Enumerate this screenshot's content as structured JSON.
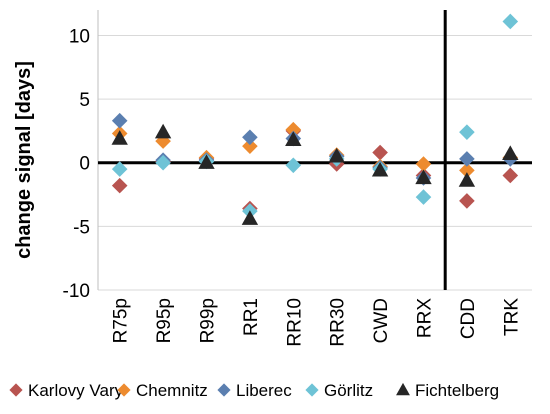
{
  "chart_data": {
    "type": "scatter",
    "categories": [
      "R75p",
      "R95p",
      "R99p",
      "RR1",
      "RR10",
      "RR30",
      "CWD",
      "RRX",
      "CDD",
      "TRK"
    ],
    "ylabel": "change signal [days]",
    "ylim": [
      -10,
      12
    ],
    "yticks": [
      -10,
      -5,
      0,
      5,
      10
    ],
    "grid": true,
    "legend_placement": "bottom",
    "series": [
      {
        "name": "Karlovy Vary",
        "marker": "diamond",
        "color": "#b85450",
        "values": [
          -1.8,
          0.1,
          0.3,
          -3.6,
          2.5,
          -0.1,
          0.8,
          -1.0,
          -3.0,
          -1.0
        ]
      },
      {
        "name": "Chemnitz",
        "marker": "diamond",
        "color": "#ed8b2f",
        "values": [
          2.3,
          1.7,
          0.4,
          1.3,
          2.6,
          0.6,
          -0.3,
          -0.1,
          -0.6,
          0.4
        ]
      },
      {
        "name": "Liberec",
        "marker": "diamond",
        "color": "#5b7fb0",
        "values": [
          3.3,
          0.2,
          0.2,
          2.0,
          1.9,
          0.5,
          -0.4,
          -1.2,
          0.3,
          0.3
        ]
      },
      {
        "name": "Görlitz",
        "marker": "diamond",
        "color": "#6ec3d6",
        "values": [
          -0.5,
          0.0,
          0.1,
          -3.8,
          -0.2,
          0.3,
          -0.5,
          -2.7,
          2.4,
          11.1
        ]
      },
      {
        "name": "Fichtelberg",
        "marker": "triangle",
        "color": "#262626",
        "values": [
          1.9,
          2.4,
          0.0,
          -4.4,
          1.8,
          0.5,
          -0.6,
          -1.2,
          -1.4,
          0.7
        ]
      }
    ],
    "vertical_marker_between": [
      "RRX",
      "CDD"
    ]
  }
}
